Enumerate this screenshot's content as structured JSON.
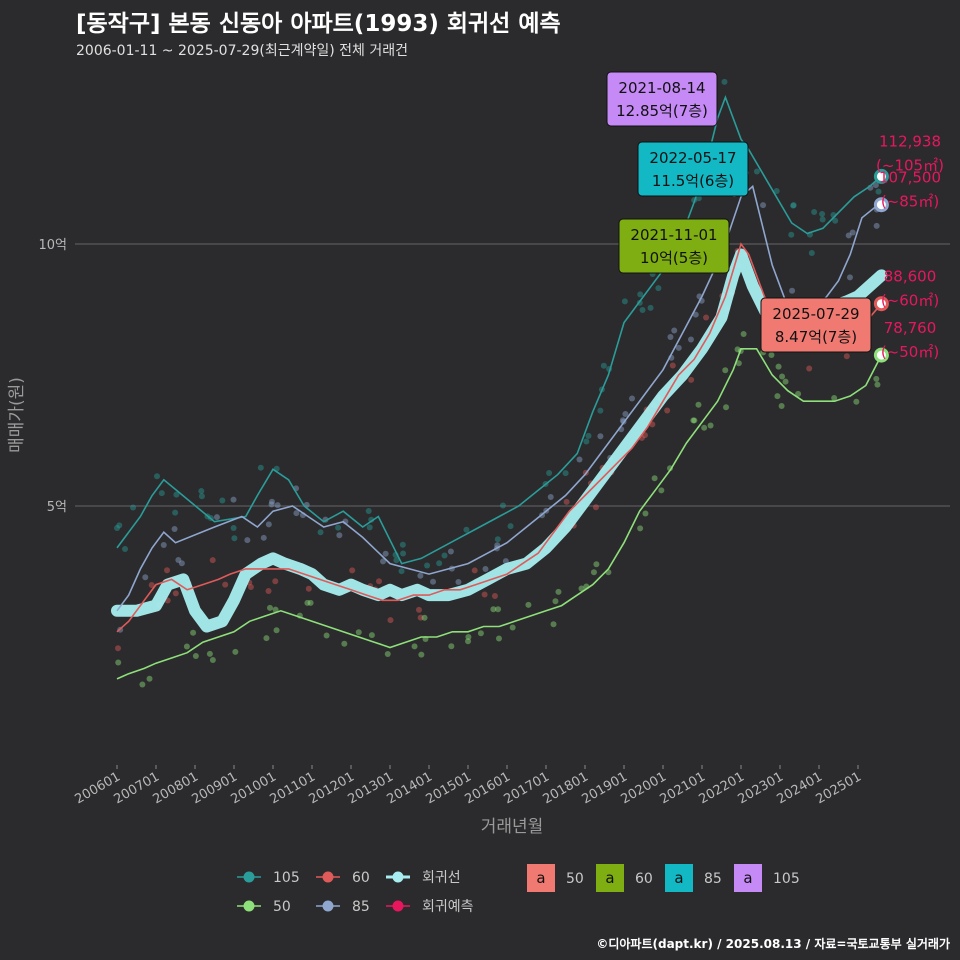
{
  "header": {
    "title": "[동작구] 본동 신동아 아파트(1993) 회귀선 예측",
    "subtitle": "2006-01-11 ~ 2025-07-29(최근계약일) 전체 거래건"
  },
  "credit": "©디아파트(dapt.kr) / 2025.08.13 / 자료=국토교통부 실거래가",
  "colors": {
    "s105": "#2a9d9a",
    "s60": "#e05a5a",
    "s50": "#8ee07a",
    "s85": "#8fa6cf",
    "reg": "#a8eef0",
    "pred": "#e8175d",
    "box50": "#f07a72",
    "box60": "#7fae12",
    "box85": "#12b8c4",
    "box105": "#c58af5"
  },
  "chart_data": {
    "type": "line",
    "title": "[동작구] 본동 신동아 아파트(1993) 회귀선 예측",
    "xlabel": "거래년월",
    "ylabel": "매매가(원)",
    "x_range": [
      2005.9,
      2025.9
    ],
    "ylim": [
      0.0,
      13.5
    ],
    "y_unit": "억",
    "y_ticks": [
      {
        "value": 5,
        "label": "5억"
      },
      {
        "value": 10,
        "label": "10억"
      }
    ],
    "x_ticks": [
      "200601",
      "200701",
      "200801",
      "200901",
      "201001",
      "201101",
      "201201",
      "201301",
      "201401",
      "201501",
      "201601",
      "201701",
      "201801",
      "201901",
      "202001",
      "202101",
      "202201",
      "202301",
      "202401",
      "202501"
    ],
    "grid": true,
    "legend_position": "bottom",
    "legend": {
      "lines": [
        {
          "key": "s105",
          "label": "105"
        },
        {
          "key": "s60",
          "label": "60"
        },
        {
          "key": "reg",
          "label": "회귀선"
        },
        {
          "key": "s50",
          "label": "50"
        },
        {
          "key": "s85",
          "label": "85"
        },
        {
          "key": "pred",
          "label": "회귀예측"
        }
      ],
      "boxes": [
        {
          "key": "box50",
          "label": "50",
          "glyph": "a"
        },
        {
          "key": "box60",
          "label": "60",
          "glyph": "a"
        },
        {
          "key": "box85",
          "label": "85",
          "glyph": "a"
        },
        {
          "key": "box105",
          "label": "105",
          "glyph": "a"
        }
      ]
    },
    "series": [
      {
        "key": "s105",
        "name": "105",
        "x": [
          2006.0,
          2006.3,
          2006.6,
          2006.9,
          2007.2,
          2008.5,
          2009.3,
          2009.6,
          2010.0,
          2010.4,
          2010.8,
          2011.3,
          2011.8,
          2012.3,
          2012.7,
          2013.3,
          2013.8,
          2014.3,
          2014.8,
          2015.3,
          2015.8,
          2016.3,
          2016.8,
          2017.3,
          2017.8,
          2018.2,
          2018.6,
          2019.0,
          2019.5,
          2020.0,
          2020.4,
          2020.8,
          2021.1,
          2021.4,
          2021.6,
          2022.0,
          2022.2,
          2023.3,
          2023.7,
          2024.1,
          2024.5,
          2024.9,
          2025.3,
          2025.6
        ],
        "y": [
          4.2,
          4.5,
          4.8,
          5.2,
          5.5,
          4.7,
          4.8,
          5.2,
          5.7,
          5.5,
          5.0,
          4.7,
          4.9,
          4.6,
          4.8,
          3.9,
          4.0,
          4.2,
          4.4,
          4.6,
          4.8,
          5.0,
          5.3,
          5.6,
          6.0,
          6.8,
          7.5,
          8.5,
          9.0,
          9.5,
          10.0,
          10.8,
          11.5,
          12.4,
          12.8,
          12.0,
          11.8,
          10.4,
          10.2,
          10.3,
          10.6,
          10.9,
          11.1,
          11.3
        ]
      },
      {
        "key": "s85",
        "name": "85",
        "x": [
          2006.0,
          2006.3,
          2006.6,
          2006.9,
          2007.2,
          2007.5,
          2008.5,
          2009.2,
          2009.6,
          2010.0,
          2010.5,
          2010.9,
          2011.3,
          2011.8,
          2012.3,
          2013.0,
          2013.5,
          2014.0,
          2014.5,
          2015.0,
          2015.5,
          2016.0,
          2016.5,
          2017.0,
          2017.5,
          2018.0,
          2018.5,
          2019.0,
          2019.5,
          2020.0,
          2020.5,
          2021.0,
          2021.5,
          2022.0,
          2022.3,
          2022.8,
          2023.2,
          2023.8,
          2024.2,
          2024.5,
          2024.8,
          2025.1,
          2025.6
        ],
        "y": [
          3.0,
          3.3,
          3.8,
          4.2,
          4.5,
          4.3,
          4.6,
          4.8,
          4.6,
          4.9,
          5.0,
          4.8,
          4.6,
          4.7,
          4.4,
          3.9,
          3.8,
          3.7,
          3.8,
          3.9,
          4.1,
          4.3,
          4.6,
          4.9,
          5.2,
          5.6,
          6.1,
          6.6,
          7.1,
          7.6,
          8.3,
          9.0,
          9.8,
          10.9,
          11.1,
          9.6,
          8.8,
          8.7,
          9.0,
          9.3,
          9.8,
          10.5,
          10.8
        ]
      },
      {
        "key": "s60",
        "name": "60",
        "x": [
          2006.0,
          2006.3,
          2006.7,
          2007.0,
          2007.4,
          2007.8,
          2008.2,
          2008.6,
          2008.9,
          2009.3,
          2009.7,
          2010.0,
          2010.4,
          2010.8,
          2011.2,
          2011.6,
          2012.0,
          2012.4,
          2012.8,
          2013.2,
          2013.6,
          2014.0,
          2014.4,
          2014.8,
          2015.2,
          2015.6,
          2016.0,
          2016.4,
          2016.8,
          2017.2,
          2017.6,
          2018.0,
          2018.4,
          2018.8,
          2019.2,
          2019.6,
          2020.0,
          2020.4,
          2020.8,
          2021.2,
          2021.6,
          2022.0,
          2022.2,
          2022.6,
          2023.0,
          2023.4,
          2023.8,
          2024.2,
          2024.6,
          2025.0,
          2025.3,
          2025.6
        ],
        "y": [
          2.6,
          2.8,
          3.2,
          3.5,
          3.6,
          3.4,
          3.5,
          3.6,
          3.7,
          3.8,
          3.8,
          3.8,
          3.8,
          3.7,
          3.6,
          3.5,
          3.4,
          3.3,
          3.2,
          3.2,
          3.3,
          3.3,
          3.4,
          3.4,
          3.5,
          3.6,
          3.7,
          3.9,
          4.1,
          4.5,
          4.9,
          5.2,
          5.5,
          5.8,
          6.1,
          6.5,
          7.0,
          7.5,
          7.8,
          8.3,
          9.0,
          10.0,
          9.8,
          9.0,
          8.5,
          8.2,
          8.0,
          8.1,
          8.2,
          8.4,
          8.6,
          8.86
        ]
      },
      {
        "key": "s50",
        "name": "50",
        "x": [
          2006.0,
          2006.3,
          2006.7,
          2007.0,
          2007.4,
          2007.8,
          2008.2,
          2008.6,
          2009.0,
          2009.4,
          2009.8,
          2010.2,
          2010.6,
          2011.0,
          2011.4,
          2011.8,
          2012.2,
          2012.6,
          2013.0,
          2013.4,
          2013.8,
          2014.2,
          2014.6,
          2015.0,
          2015.4,
          2015.8,
          2016.2,
          2016.6,
          2017.0,
          2017.4,
          2017.8,
          2018.2,
          2018.6,
          2019.0,
          2019.4,
          2019.8,
          2020.2,
          2020.6,
          2021.0,
          2021.4,
          2021.8,
          2022.0,
          2022.4,
          2022.8,
          2023.2,
          2023.6,
          2024.0,
          2024.4,
          2024.8,
          2025.2,
          2025.6
        ],
        "y": [
          1.7,
          1.8,
          1.9,
          2.0,
          2.1,
          2.2,
          2.4,
          2.5,
          2.6,
          2.8,
          2.9,
          3.0,
          2.9,
          2.8,
          2.7,
          2.6,
          2.5,
          2.4,
          2.3,
          2.4,
          2.5,
          2.5,
          2.6,
          2.6,
          2.7,
          2.7,
          2.8,
          2.9,
          3.0,
          3.1,
          3.3,
          3.5,
          3.8,
          4.3,
          4.9,
          5.3,
          5.7,
          6.2,
          6.6,
          7.0,
          7.6,
          8.0,
          8.0,
          7.5,
          7.2,
          7.0,
          7.0,
          7.0,
          7.1,
          7.3,
          7.88
        ]
      },
      {
        "key": "reg",
        "name": "회귀선",
        "x": [
          2006.0,
          2006.5,
          2007.0,
          2007.3,
          2007.7,
          2008.0,
          2008.3,
          2008.7,
          2009.0,
          2009.3,
          2009.7,
          2010.0,
          2010.3,
          2010.7,
          2011.0,
          2011.3,
          2011.7,
          2012.0,
          2012.3,
          2012.7,
          2013.0,
          2013.3,
          2013.7,
          2014.0,
          2014.5,
          2015.0,
          2015.5,
          2016.0,
          2016.5,
          2017.0,
          2017.5,
          2018.0,
          2018.5,
          2019.0,
          2019.5,
          2020.0,
          2020.5,
          2021.0,
          2021.5,
          2021.8,
          2022.0,
          2022.3,
          2022.7,
          2023.0,
          2023.3,
          2023.7,
          2024.0,
          2024.3,
          2024.7,
          2025.0,
          2025.3,
          2025.6
        ],
        "y": [
          3.0,
          3.0,
          3.1,
          3.5,
          3.6,
          3.0,
          2.7,
          2.8,
          3.2,
          3.7,
          3.9,
          4.0,
          3.9,
          3.8,
          3.7,
          3.5,
          3.4,
          3.5,
          3.4,
          3.3,
          3.4,
          3.3,
          3.4,
          3.3,
          3.3,
          3.4,
          3.6,
          3.8,
          3.9,
          4.2,
          4.6,
          5.1,
          5.6,
          6.1,
          6.6,
          7.1,
          7.5,
          8.0,
          8.6,
          9.4,
          9.8,
          9.2,
          8.6,
          8.5,
          8.6,
          8.6,
          8.7,
          8.8,
          8.9,
          9.0,
          9.2,
          9.4
        ]
      }
    ],
    "annotations": [
      {
        "date": "2021-08-14",
        "price": "12.85억(7층)",
        "color_key": "box105",
        "x": 2021.6,
        "y": 12.85
      },
      {
        "date": "2022-05-17",
        "price": "11.5억(6층)",
        "color_key": "box85",
        "x": 2022.4,
        "y": 11.5
      },
      {
        "date": "2021-11-01",
        "price": "10억(5층)",
        "color_key": "box60",
        "x": 2021.8,
        "y": 10.0
      },
      {
        "date": "2025-07-29",
        "price": "8.47억(7층)",
        "color_key": "box50",
        "x": 2025.6,
        "y": 8.47
      }
    ],
    "end_labels": [
      {
        "value": "112,938",
        "area": "(~105㎡)",
        "color_key": "s105",
        "y": 11.29
      },
      {
        "value": "107,500",
        "area": "(~85㎡)",
        "color_key": "s85",
        "y": 10.75
      },
      {
        "value": "88,600",
        "area": "(~60㎡)",
        "color_key": "s60",
        "y": 8.86
      },
      {
        "value": "78,760",
        "area": "(~50㎡)",
        "color_key": "s50",
        "y": 7.88
      }
    ]
  }
}
